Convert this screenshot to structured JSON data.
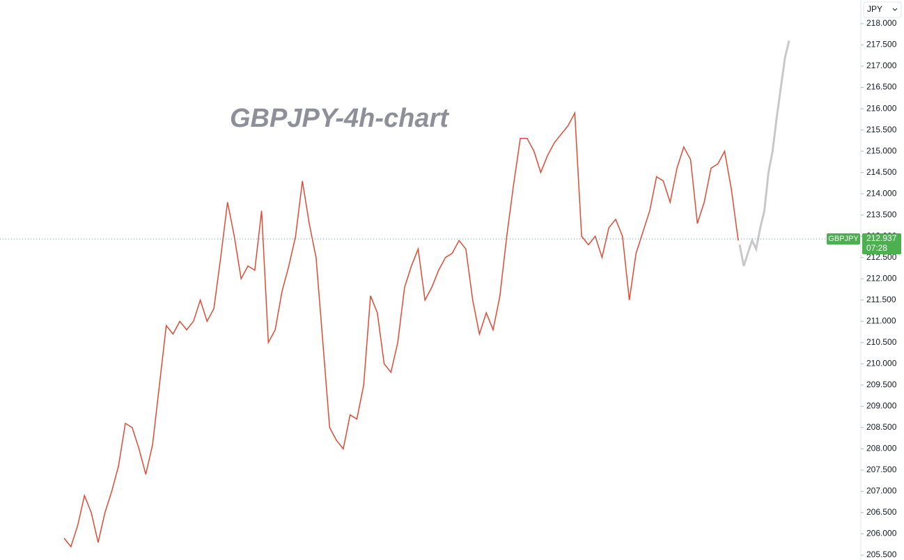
{
  "chart_data": {
    "type": "line",
    "title": "GBPJPY-4h-chart",
    "currency": "JPY",
    "symbol": "GBPJPY",
    "last_price": {
      "value": 212.937,
      "label": "212.937"
    },
    "countdown": "07:28",
    "series": [
      {
        "name": "GBPJPY",
        "color": "#de4a32",
        "values": [
          205.9,
          205.7,
          206.2,
          206.9,
          206.5,
          205.8,
          206.5,
          207.0,
          207.6,
          208.6,
          208.5,
          208.0,
          207.4,
          208.1,
          209.5,
          210.9,
          210.7,
          211.0,
          210.8,
          211.0,
          211.5,
          211.0,
          211.3,
          212.5,
          213.8,
          213.0,
          212.0,
          212.3,
          212.2,
          213.6,
          210.5,
          210.8,
          211.7,
          212.3,
          213.0,
          214.3,
          213.3,
          212.5,
          210.5,
          208.5,
          208.2,
          208.0,
          208.8,
          208.7,
          209.5,
          211.6,
          211.2,
          210.0,
          209.8,
          210.5,
          211.8,
          212.3,
          212.7,
          211.5,
          211.8,
          212.2,
          212.5,
          212.6,
          212.9,
          212.7,
          211.5,
          210.7,
          211.2,
          210.8,
          211.6,
          213.0,
          214.2,
          215.3,
          215.3,
          215.0,
          214.5,
          214.9,
          215.2,
          215.4,
          215.6,
          215.9,
          213.0,
          212.8,
          213.0,
          212.5,
          213.2,
          213.4,
          213.0,
          211.5,
          212.6,
          213.1,
          213.6,
          214.4,
          214.3,
          213.8,
          214.6,
          215.1,
          214.8,
          213.3,
          213.8,
          214.6,
          214.7,
          215.0,
          214.1,
          212.9
        ]
      },
      {
        "color": "#c8c8c8",
        "values": [
          212.8,
          212.3,
          212.6,
          212.9,
          212.7,
          213.2,
          213.6,
          214.5,
          215.0,
          215.8,
          216.5,
          217.2,
          217.6
        ]
      }
    ],
    "ylim": [
      205.5,
      218.0
    ],
    "yticks": [
      {
        "value": 205.5,
        "label": "205.500"
      },
      {
        "value": 206.0,
        "label": "206.000"
      },
      {
        "value": 206.5,
        "label": "206.500"
      },
      {
        "value": 207.0,
        "label": "207.000"
      },
      {
        "value": 207.5,
        "label": "207.500"
      },
      {
        "value": 208.0,
        "label": "208.000"
      },
      {
        "value": 208.5,
        "label": "208.500"
      },
      {
        "value": 209.0,
        "label": "209.000"
      },
      {
        "value": 209.5,
        "label": "209.500"
      },
      {
        "value": 210.0,
        "label": "210.000"
      },
      {
        "value": 210.5,
        "label": "210.500"
      },
      {
        "value": 211.0,
        "label": "211.000"
      },
      {
        "value": 211.5,
        "label": "211.500"
      },
      {
        "value": 212.0,
        "label": "212.000"
      },
      {
        "value": 212.5,
        "label": "212.500"
      },
      {
        "value": 213.0,
        "label": "213.000"
      },
      {
        "value": 213.5,
        "label": "213.500"
      },
      {
        "value": 214.0,
        "label": "214.000"
      },
      {
        "value": 214.5,
        "label": "214.500"
      },
      {
        "value": 215.0,
        "label": "215.000"
      },
      {
        "value": 215.5,
        "label": "215.500"
      },
      {
        "value": 216.0,
        "label": "216.000"
      },
      {
        "value": 216.5,
        "label": "216.500"
      },
      {
        "value": 217.0,
        "label": "217.000"
      },
      {
        "value": 217.5,
        "label": "217.500"
      },
      {
        "value": 218.0,
        "label": "218.000"
      }
    ]
  }
}
